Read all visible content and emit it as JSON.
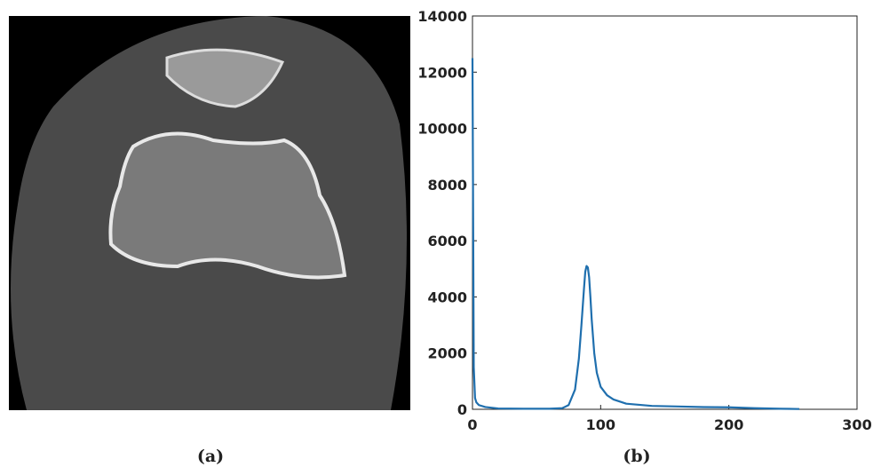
{
  "figure": {
    "captions": [
      "(a)",
      "(b)"
    ]
  },
  "chart_data": {
    "type": "line",
    "x": [
      0,
      1,
      2,
      3,
      5,
      10,
      20,
      40,
      60,
      70,
      75,
      80,
      83,
      85,
      87,
      88,
      89,
      90,
      91,
      92,
      93,
      95,
      97,
      100,
      105,
      110,
      120,
      140,
      160,
      180,
      200,
      220,
      240,
      255
    ],
    "series": [
      {
        "color": "#1f6fae",
        "values": [
          12500,
          1500,
          400,
          250,
          150,
          80,
          30,
          20,
          20,
          40,
          150,
          700,
          1800,
          3000,
          4300,
          4900,
          5100,
          5050,
          4700,
          4000,
          3200,
          2000,
          1300,
          800,
          500,
          350,
          200,
          120,
          100,
          80,
          70,
          40,
          20,
          10
        ]
      }
    ],
    "xlim": [
      0,
      300
    ],
    "xticks": [
      0,
      100,
      200,
      300
    ],
    "ylim": [
      0,
      14000
    ],
    "yticks": [
      0,
      2000,
      4000,
      6000,
      8000,
      10000,
      12000,
      14000
    ],
    "grid": false
  }
}
